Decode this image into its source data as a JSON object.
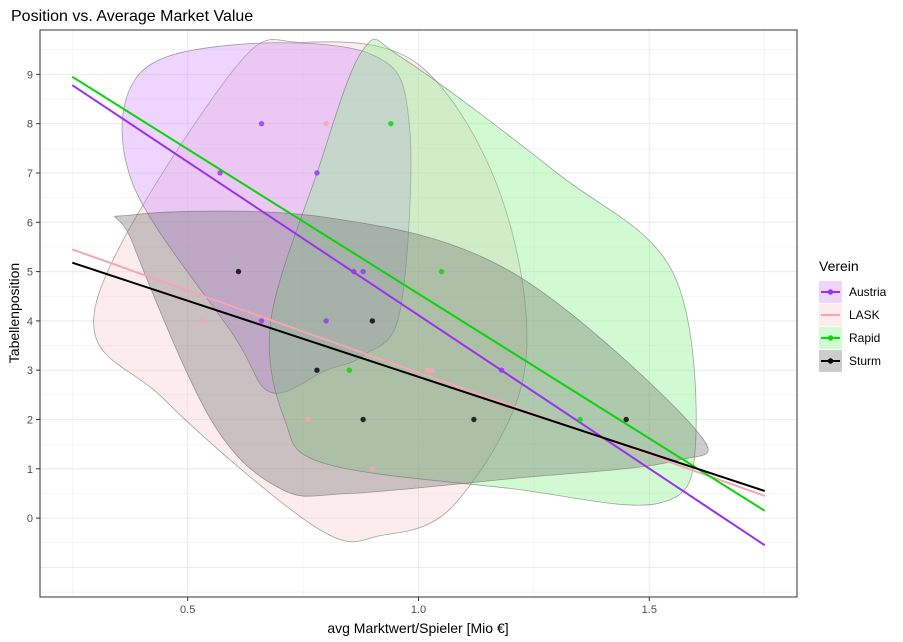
{
  "chart_data": {
    "type": "scatter",
    "title": "Position vs. Average Market Value",
    "xlabel": "avg Marktwert/Spieler [Mio €]",
    "ylabel": "Tabellenposition",
    "xlim": [
      0.18,
      1.82
    ],
    "ylim": [
      -1.6,
      9.9
    ],
    "x_ticks": [
      0.5,
      1.0,
      1.5
    ],
    "x_tick_labels": [
      "0.5",
      "1.0",
      "1.5"
    ],
    "y_ticks": [
      0,
      1,
      2,
      3,
      4,
      5,
      6,
      7,
      8,
      9
    ],
    "y_tick_labels": [
      "0",
      "1",
      "2",
      "3",
      "4",
      "5",
      "6",
      "7",
      "8",
      "9"
    ],
    "grid": true,
    "legend": {
      "title": "Verein",
      "placement": "right"
    },
    "series": [
      {
        "name": "Austria",
        "color": "#9b30f0",
        "fill": "#cc88ff",
        "points": [
          [
            0.57,
            7
          ],
          [
            0.66,
            8
          ],
          [
            0.66,
            4
          ],
          [
            0.78,
            7
          ],
          [
            0.8,
            4
          ],
          [
            0.86,
            5
          ],
          [
            0.88,
            5
          ],
          [
            1.18,
            3
          ]
        ],
        "fit": [
          [
            0.25,
            8.78
          ],
          [
            1.75,
            -0.55
          ]
        ],
        "hull": [
          [
            0.39,
            8.95
          ],
          [
            0.6,
            9.6
          ],
          [
            0.9,
            9.4
          ],
          [
            0.98,
            8.0
          ],
          [
            0.96,
            4.2
          ],
          [
            0.88,
            3.3
          ],
          [
            0.8,
            3.0
          ],
          [
            0.68,
            2.55
          ],
          [
            0.6,
            3.7
          ],
          [
            0.38,
            6.8
          ]
        ]
      },
      {
        "name": "LASK",
        "color": "#f4a6b3",
        "fill": "#f7c8cf",
        "points": [
          [
            0.53,
            4
          ],
          [
            0.8,
            8
          ],
          [
            0.76,
            2
          ],
          [
            0.9,
            1
          ],
          [
            1.02,
            3
          ],
          [
            1.03,
            3
          ]
        ],
        "fit": [
          [
            0.25,
            5.45
          ],
          [
            1.75,
            0.45
          ]
        ],
        "hull": [
          [
            0.6,
            9.1
          ],
          [
            0.75,
            9.65
          ],
          [
            1.0,
            9.2
          ],
          [
            1.18,
            6.5
          ],
          [
            1.23,
            3.0
          ],
          [
            1.08,
            0.3
          ],
          [
            0.92,
            -0.35
          ],
          [
            0.78,
            -0.2
          ],
          [
            0.45,
            2.4
          ],
          [
            0.3,
            4.3
          ]
        ]
      },
      {
        "name": "Rapid",
        "color": "#0ad40a",
        "fill": "#7ff07f",
        "points": [
          [
            0.94,
            8
          ],
          [
            1.05,
            5
          ],
          [
            0.85,
            3
          ],
          [
            1.35,
            2
          ]
        ],
        "fit": [
          [
            0.25,
            8.95
          ],
          [
            1.75,
            0.15
          ]
        ],
        "hull": [
          [
            0.97,
            9.3
          ],
          [
            1.3,
            7.0
          ],
          [
            1.55,
            5.0
          ],
          [
            1.6,
            1.5
          ],
          [
            1.52,
            0.3
          ],
          [
            1.2,
            0.6
          ],
          [
            0.8,
            1.1
          ],
          [
            0.71,
            2.0
          ],
          [
            0.68,
            4.0
          ],
          [
            0.78,
            7.0
          ],
          [
            0.88,
            9.5
          ]
        ]
      },
      {
        "name": "Sturm",
        "color": "#000000",
        "fill": "#6e6e6e",
        "points": [
          [
            0.61,
            5
          ],
          [
            0.9,
            4
          ],
          [
            0.78,
            3
          ],
          [
            0.88,
            2
          ],
          [
            1.12,
            2
          ],
          [
            1.45,
            2
          ]
        ],
        "fit": [
          [
            0.25,
            5.18
          ],
          [
            1.75,
            0.55
          ]
        ],
        "hull": [
          [
            0.38,
            6.15
          ],
          [
            0.8,
            6.1
          ],
          [
            1.2,
            5.0
          ],
          [
            1.6,
            1.8
          ],
          [
            1.55,
            1.15
          ],
          [
            1.2,
            0.8
          ],
          [
            0.85,
            0.5
          ],
          [
            0.7,
            0.6
          ],
          [
            0.55,
            2.0
          ],
          [
            0.38,
            5.6
          ]
        ]
      }
    ]
  }
}
